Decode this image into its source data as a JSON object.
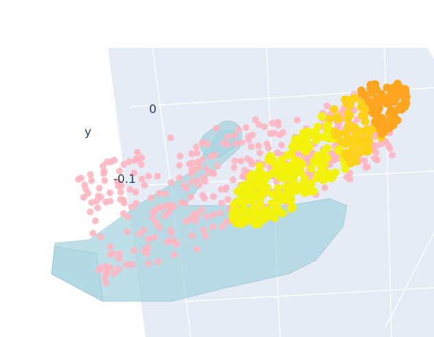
{
  "chart_data": {
    "type": "scatter3d",
    "ylabel": "y",
    "ylim": [
      -0.3,
      0.1
    ],
    "yticks": [
      0,
      -0.1
    ]
  }
}
